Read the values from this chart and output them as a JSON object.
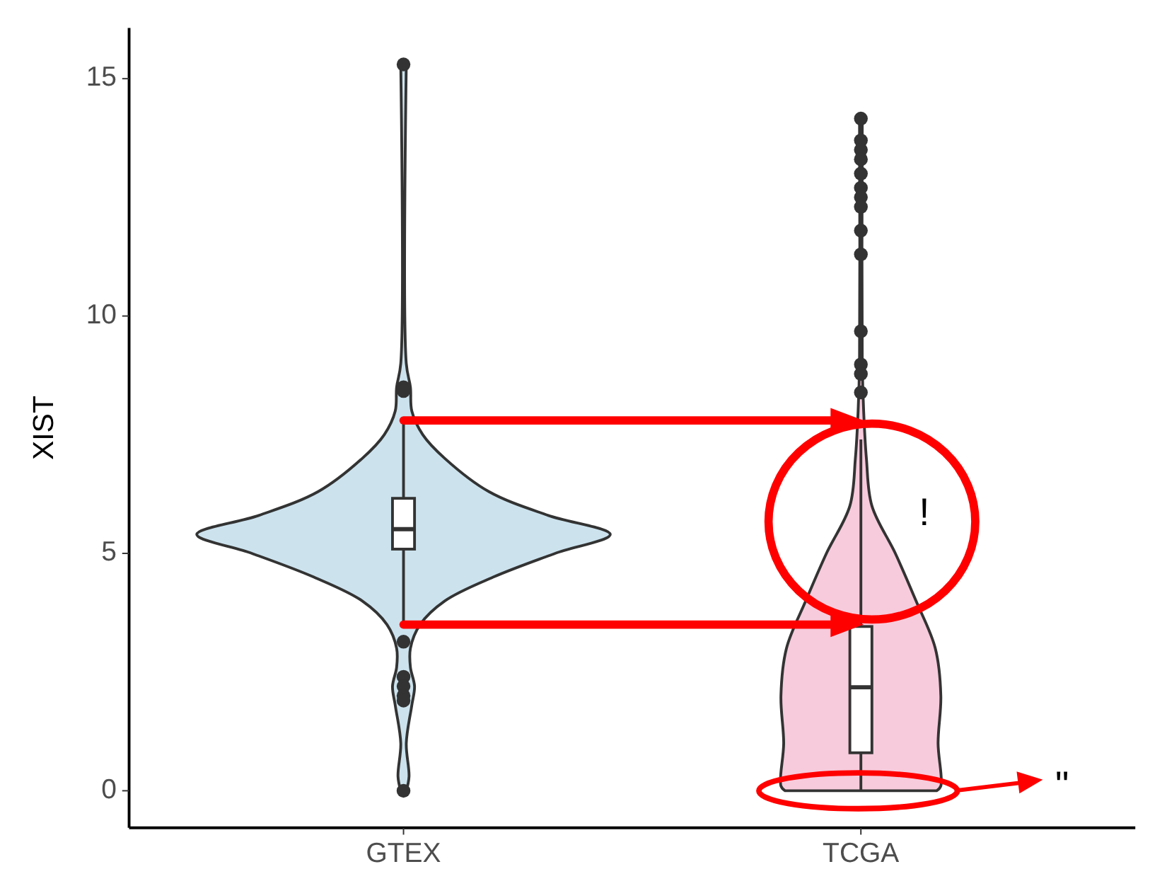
{
  "chart_data": {
    "type": "box",
    "ylabel": "XIST",
    "categories": [
      "GTEX",
      "TCGA"
    ],
    "boxes": [
      {
        "low": 3.5,
        "q1": 5.09,
        "median": 5.51,
        "q3": 6.16,
        "high": 7.8,
        "outliers": [
          15.3,
          8.5,
          8.42,
          3.14,
          2.4,
          2.2,
          2.0,
          1.9,
          0
        ]
      },
      {
        "low": 0,
        "q1": 0.8,
        "median": 2.18,
        "q3": 3.46,
        "high": 7.4,
        "outliers": [
          14.16,
          13.7,
          13.5,
          13.3,
          13.0,
          12.7,
          12.5,
          12.3,
          11.8,
          11.3,
          9.68,
          8.98,
          8.78,
          8.39
        ]
      }
    ],
    "ylim": [
      -0.78,
      16.07
    ],
    "yticks": [
      0,
      5,
      10,
      15
    ],
    "grid": false,
    "annotations": [
      "!",
      "\""
    ]
  }
}
